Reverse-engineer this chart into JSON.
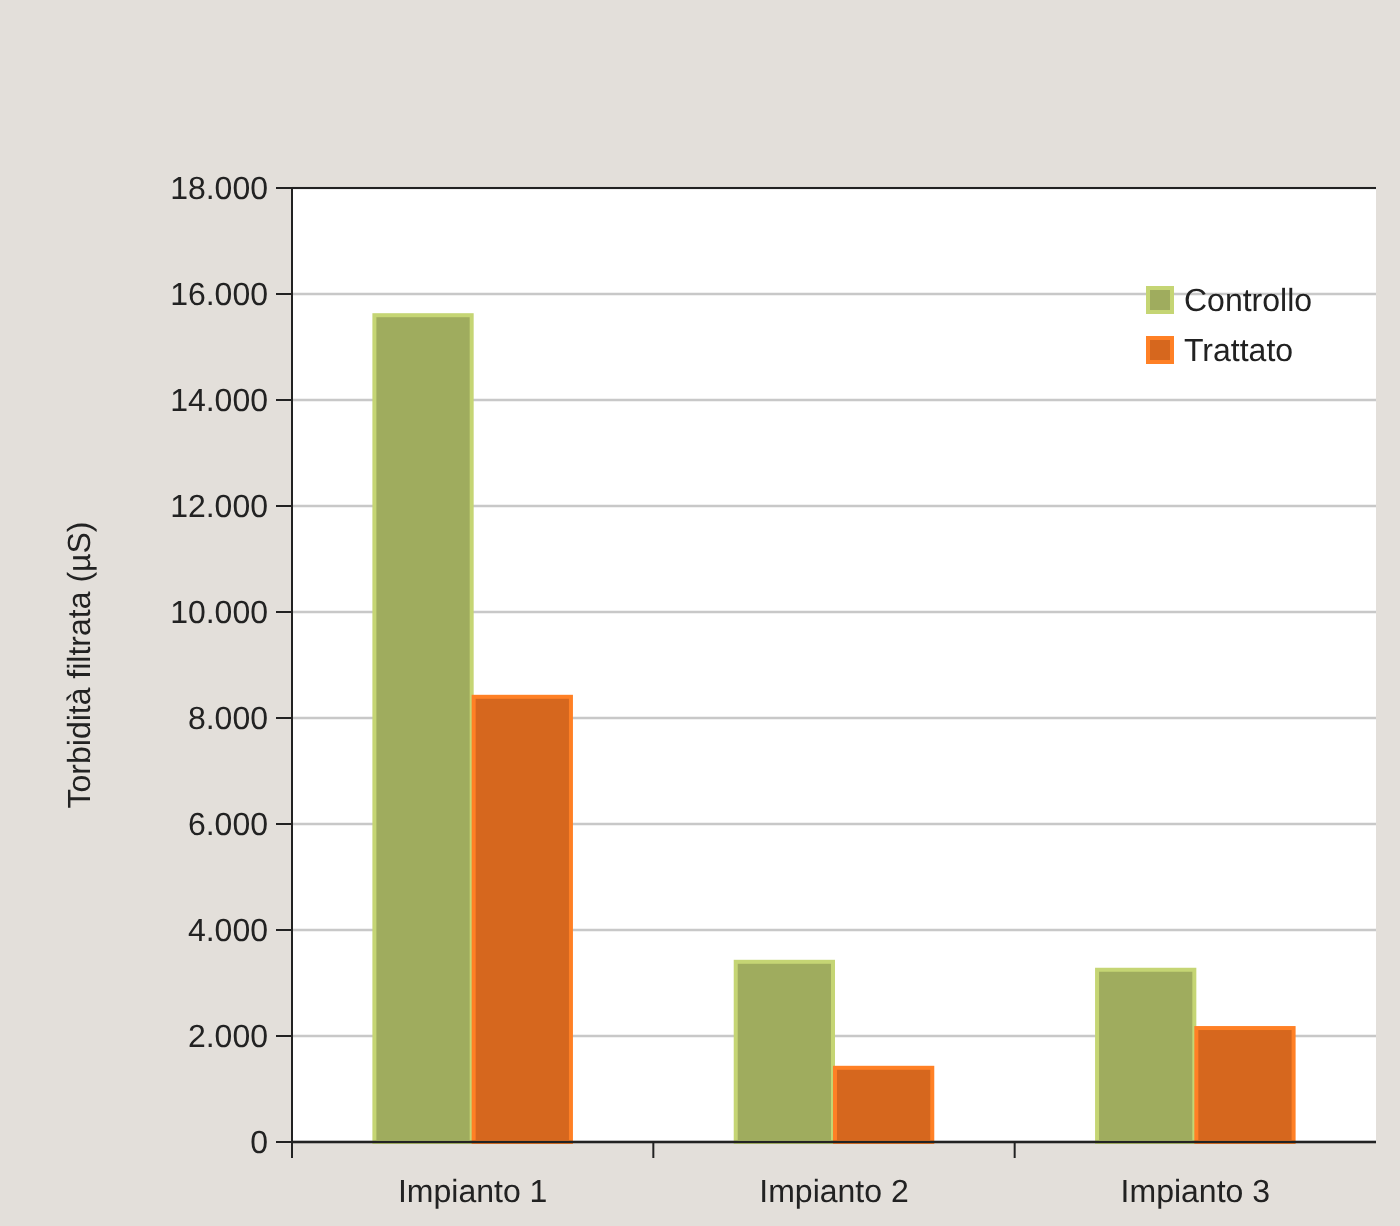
{
  "chart_data": {
    "type": "bar",
    "ylabel": "Torbidità filtrata (µS)",
    "categories": [
      "Impianto 1",
      "Impianto 2",
      "Impianto 3"
    ],
    "series": [
      {
        "name": "Controllo",
        "color": "#9fac5e",
        "values": [
          15600,
          3400,
          3250
        ]
      },
      {
        "name": "Trattato",
        "color": "#d6671e",
        "values": [
          8400,
          1400,
          2150
        ]
      }
    ],
    "ylim": [
      0,
      18000
    ],
    "yticks": [
      0,
      {
        "value": 2000,
        "label": "2.000"
      },
      {
        "value": 4000,
        "label": "4.000"
      },
      {
        "value": 6000,
        "label": "6.000"
      },
      {
        "value": 8000,
        "label": "8.000"
      },
      {
        "value": 10000,
        "label": "10.000"
      },
      {
        "value": 12000,
        "label": "12.000"
      },
      {
        "value": 14000,
        "label": "14.000"
      },
      {
        "value": 16000,
        "label": "16.000"
      },
      {
        "value": 18000,
        "label": "18.000"
      }
    ],
    "grid": "y",
    "legend": "top right"
  }
}
